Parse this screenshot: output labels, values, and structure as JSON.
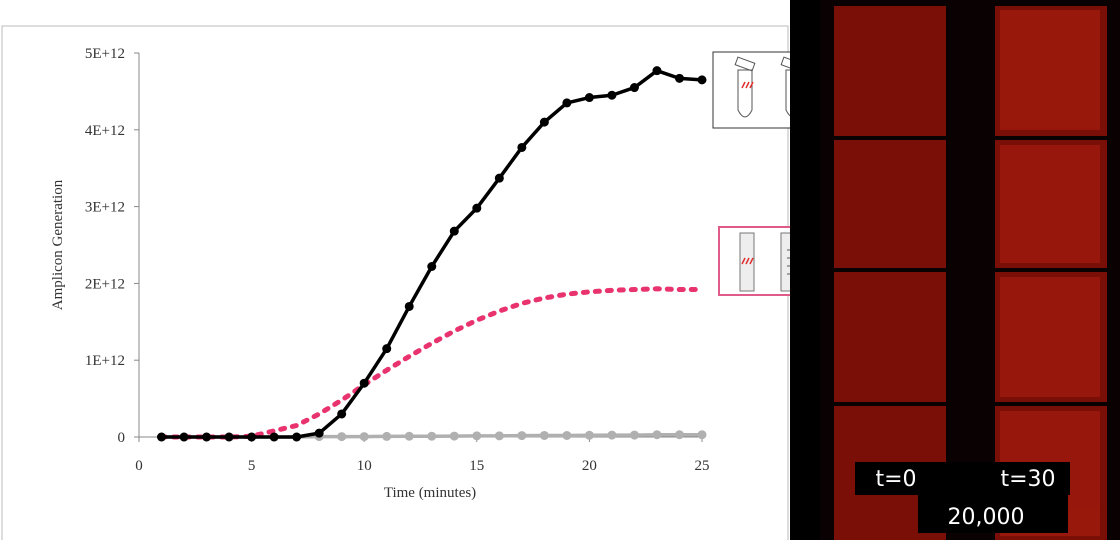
{
  "chart_data": {
    "type": "line",
    "x_label": "Time (minutes)",
    "y_label": "Amplicon Generation",
    "x": [
      1,
      2,
      3,
      4,
      5,
      6,
      7,
      8,
      9,
      10,
      11,
      12,
      13,
      14,
      15,
      16,
      17,
      18,
      19,
      20,
      21,
      22,
      23,
      24,
      25
    ],
    "xlim": [
      0,
      25
    ],
    "xticks": [
      0,
      5,
      10,
      15,
      20,
      25
    ],
    "ylim": [
      0,
      5000000000000.0
    ],
    "yticks": [
      0,
      {
        "value": 1000000000000.0,
        "label": "1E+12"
      },
      {
        "value": 2000000000000.0,
        "label": "2E+12"
      },
      {
        "value": 3000000000000.0,
        "label": "3E+12"
      },
      {
        "value": 4000000000000.0,
        "label": "4E+12"
      },
      {
        "value": 5000000000000.0,
        "label": "5E+12"
      }
    ],
    "series": [
      {
        "color": "#000000",
        "style": "solid-markers",
        "values": [
          0,
          0,
          0,
          0,
          0,
          0,
          0,
          50000000000.0,
          300000000000.0,
          700000000000.0,
          1150000000000.0,
          1700000000000.0,
          2220000000000.0,
          2680000000000.0,
          2980000000000.0,
          3370000000000.0,
          3770000000000.0,
          4100000000000.0,
          4350000000000.0,
          4420000000000.0,
          4450000000000.0,
          4550000000000.0,
          4770000000000.0,
          4670000000000.0,
          4650000000000.0
        ]
      },
      {
        "color": "#e8336e",
        "style": "dotted",
        "values": [
          0,
          0,
          0,
          0,
          10000000000.0,
          80000000000.0,
          150000000000.0,
          300000000000.0,
          480000000000.0,
          680000000000.0,
          870000000000.0,
          1050000000000.0,
          1220000000000.0,
          1380000000000.0,
          1520000000000.0,
          1640000000000.0,
          1740000000000.0,
          1810000000000.0,
          1860000000000.0,
          1890000000000.0,
          1910000000000.0,
          1920000000000.0,
          1930000000000.0,
          1920000000000.0,
          1920000000000.0
        ]
      },
      {
        "color": "#b0b0b0",
        "style": "solid-markers",
        "values": [
          0,
          0,
          0,
          0,
          0,
          0,
          0,
          5000000000.0,
          5000000000.0,
          5000000000.0,
          8000000000.0,
          10000000000.0,
          10000000000.0,
          12000000000.0,
          15000000000.0,
          15000000000.0,
          18000000000.0,
          20000000000.0,
          20000000000.0,
          22000000000.0,
          25000000000.0,
          25000000000.0,
          30000000000.0,
          30000000000.0,
          30000000000.0
        ]
      }
    ]
  },
  "panel_labels": {
    "start": "t=0",
    "end": "t=30",
    "count": "20,000"
  }
}
